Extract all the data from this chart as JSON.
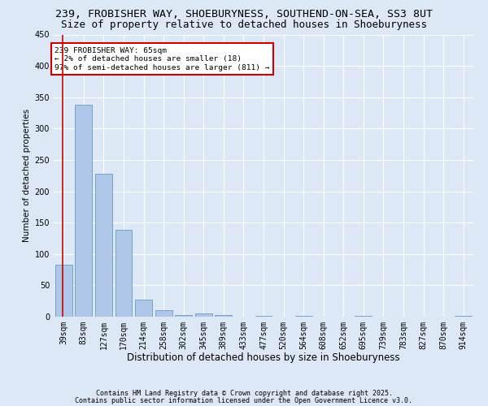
{
  "title_line1": "239, FROBISHER WAY, SHOEBURYNESS, SOUTHEND-ON-SEA, SS3 8UT",
  "title_line2": "Size of property relative to detached houses in Shoeburyness",
  "xlabel": "Distribution of detached houses by size in Shoeburyness",
  "ylabel": "Number of detached properties",
  "categories": [
    "39sqm",
    "83sqm",
    "127sqm",
    "170sqm",
    "214sqm",
    "258sqm",
    "302sqm",
    "345sqm",
    "389sqm",
    "433sqm",
    "477sqm",
    "520sqm",
    "564sqm",
    "608sqm",
    "652sqm",
    "695sqm",
    "739sqm",
    "783sqm",
    "827sqm",
    "870sqm",
    "914sqm"
  ],
  "values": [
    83,
    338,
    228,
    138,
    27,
    10,
    2,
    5,
    2,
    0,
    1,
    0,
    1,
    0,
    0,
    1,
    0,
    0,
    0,
    0,
    1
  ],
  "bar_color": "#aec6e8",
  "bar_edge_color": "#5b8db8",
  "annotation_box_text": "239 FROBISHER WAY: 65sqm\n← 2% of detached houses are smaller (18)\n97% of semi-detached houses are larger (811) →",
  "annotation_box_color": "#ffffff",
  "annotation_box_edge_color": "#cc0000",
  "vline_color": "#cc0000",
  "bg_color": "#dce8f5",
  "grid_color": "#ffffff",
  "ylim": [
    0,
    450
  ],
  "yticks": [
    0,
    50,
    100,
    150,
    200,
    250,
    300,
    350,
    400,
    450
  ],
  "footer_line1": "Contains HM Land Registry data © Crown copyright and database right 2025.",
  "footer_line2": "Contains public sector information licensed under the Open Government Licence v3.0.",
  "title_fontsize": 9.5,
  "subtitle_fontsize": 9,
  "tick_fontsize": 7,
  "xlabel_fontsize": 8.5,
  "ylabel_fontsize": 7.5
}
